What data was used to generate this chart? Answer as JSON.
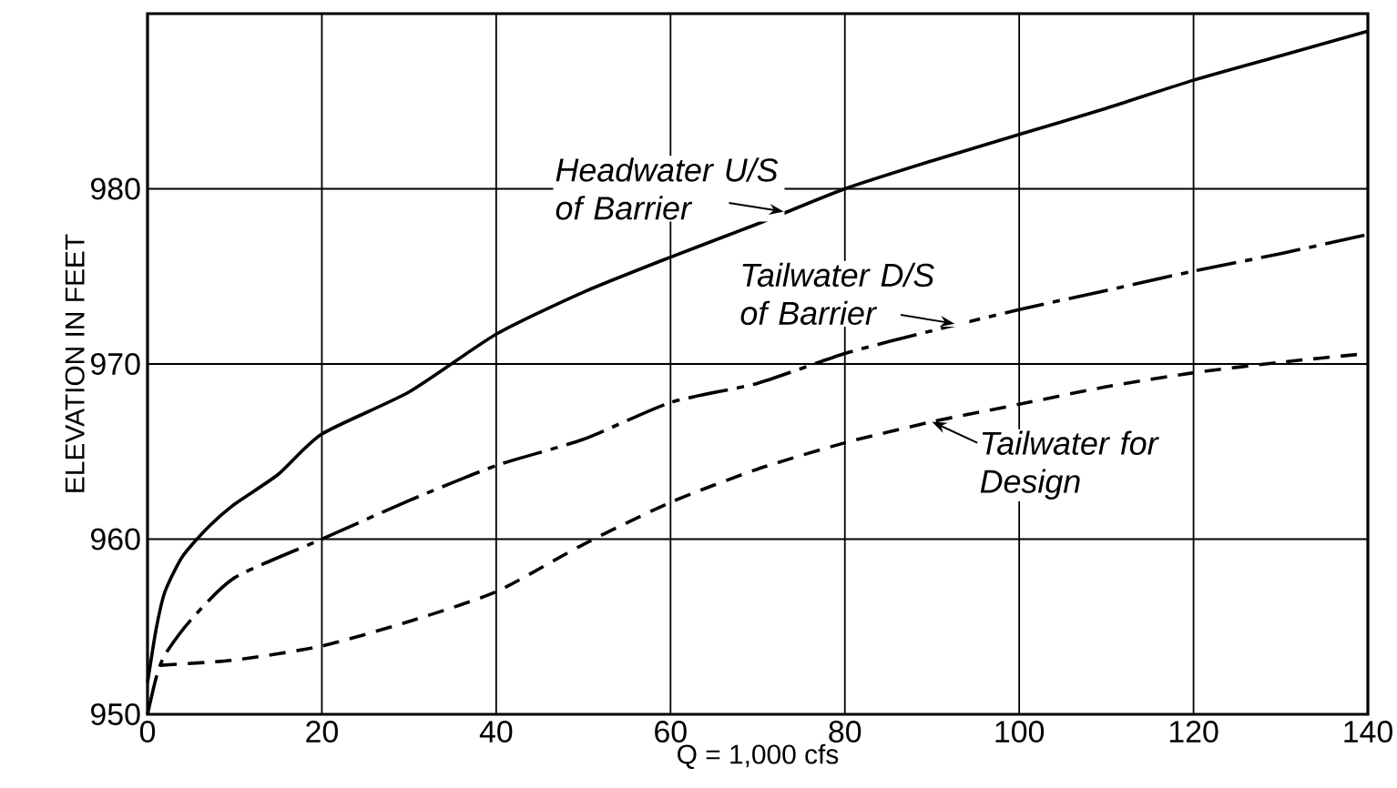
{
  "chart_data": {
    "type": "line",
    "xlabel": "Q = 1,000 cfs",
    "ylabel": "ELEVATION IN FEET",
    "xlim": [
      0,
      140
    ],
    "ylim": [
      950,
      990
    ],
    "xticks": [
      0,
      20,
      40,
      60,
      80,
      100,
      120,
      140
    ],
    "yticks": [
      950,
      960,
      970,
      980
    ],
    "grid": true,
    "marker": "none",
    "series": [
      {
        "color": "#000000",
        "line_style": "solid",
        "x": [
          0,
          1,
          2,
          4,
          7,
          10,
          15,
          20,
          30,
          40,
          50,
          60,
          70,
          80,
          90,
          100,
          110,
          120,
          130,
          140
        ],
        "values": [
          951.8,
          954.9,
          957,
          959,
          960.7,
          962,
          963.7,
          966,
          968.4,
          971.7,
          974.1,
          976.1,
          978,
          980,
          981.6,
          983.1,
          984.6,
          986.2,
          987.6,
          989
        ]
      },
      {
        "color": "#000000",
        "line_style": "dashdot",
        "x": [
          0,
          1,
          2,
          5,
          10,
          20,
          30,
          40,
          50,
          60,
          70,
          80,
          90,
          100,
          110,
          120,
          130,
          140
        ],
        "values": [
          950,
          952.1,
          953.4,
          955.4,
          957.8,
          960,
          962.2,
          964.2,
          965.7,
          967.8,
          968.9,
          970.6,
          971.9,
          973.1,
          974.2,
          975.3,
          976.3,
          977.4
        ]
      },
      {
        "color": "#000000",
        "line_style": "dashed",
        "x": [
          1.5,
          10,
          20,
          30,
          40,
          50,
          60,
          70,
          80,
          90,
          100,
          110,
          120,
          130,
          140
        ],
        "values": [
          952.8,
          953.1,
          953.9,
          955.3,
          957,
          959.7,
          962.1,
          964,
          965.5,
          966.7,
          967.7,
          968.7,
          969.5,
          970.1,
          970.6
        ]
      }
    ],
    "annotations": [
      {
        "text": "Headwater U/S of Barrier",
        "x": 73,
        "y": 978.7
      },
      {
        "text": "Tailwater D/S of Barrier",
        "x": 92.6,
        "y": 972.3
      },
      {
        "text": "Tailwater for Design",
        "x": 90,
        "y": 966.7
      }
    ]
  }
}
